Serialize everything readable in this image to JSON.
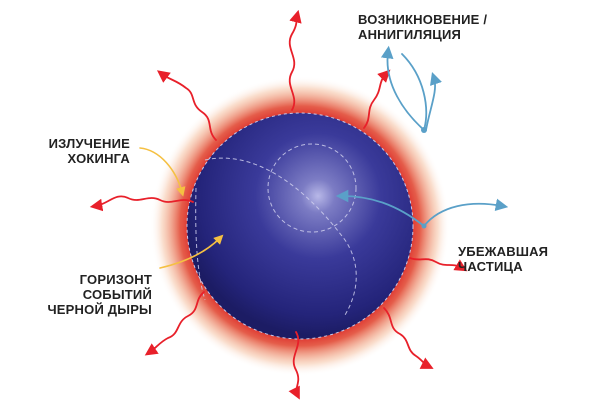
{
  "labels": {
    "creation_annihilation": [
      "ВОЗНИКНОВЕНИЕ /",
      "АННИГИЛЯЦИЯ"
    ],
    "hawking_radiation": [
      "ИЗЛУЧЕНИЕ",
      "ХОКИНГА"
    ],
    "escaped_particle": [
      "УБЕЖАВШАЯ",
      "ЧАСТИЦА"
    ],
    "event_horizon": [
      "ГОРИЗОНТ",
      "СОБЫТИЙ",
      "ЧЕРНОЙ ДЫРЫ"
    ]
  },
  "colors": {
    "sphere_core": "#2a2a8a",
    "sphere_highlight": "#8a8acc",
    "glow": "#d8161c",
    "radiation_wave": "#e8202a",
    "particle_path": "#5aa0c8",
    "pointer_arrow": "#f5c042",
    "text": "#222222",
    "horizon_dashes": "#c8c8e8"
  },
  "icons": {
    "wave": "wavy-radiation-arrow-icon",
    "particle": "particle-dot-icon"
  }
}
